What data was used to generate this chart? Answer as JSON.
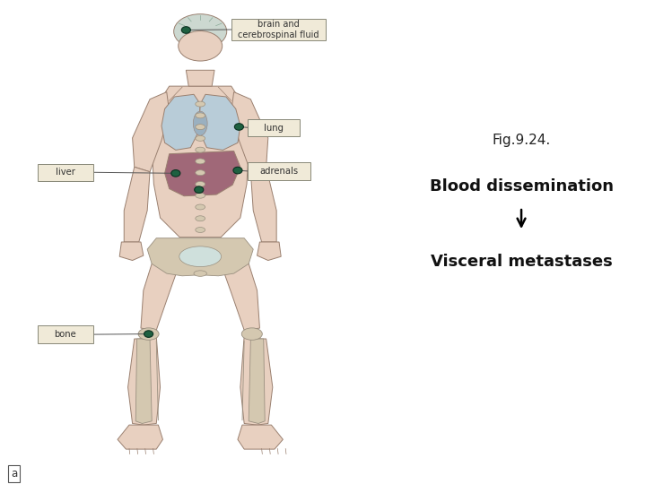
{
  "bg_color": "#cfe0dc",
  "right_bg_color": "#ffffff",
  "fig_title": "Fig.9.24.",
  "title_fontsize": 11,
  "label1": "Blood dissemination",
  "label1_fontsize": 13,
  "label2": "Visceral metastases",
  "label2_fontsize": 13,
  "arrow_color": "#000000",
  "body_outline_color": "#8a7060",
  "organ_labels_text": [
    "brain and\ncerebrospinal fluid",
    "lung",
    "liver",
    "adrenals",
    "bone"
  ],
  "label_box_facecolor": "#f0ead8",
  "label_box_edgecolor": "#888878",
  "dot_color": "#1e6040",
  "footer_label": "a",
  "body_skin": "#e8d0c0",
  "body_edge": "#9a8070",
  "lung_fill": "#b8ccd8",
  "liver_fill": "#a06878",
  "bone_fill": "#d4c8b0",
  "bone_edge": "#9a9080"
}
